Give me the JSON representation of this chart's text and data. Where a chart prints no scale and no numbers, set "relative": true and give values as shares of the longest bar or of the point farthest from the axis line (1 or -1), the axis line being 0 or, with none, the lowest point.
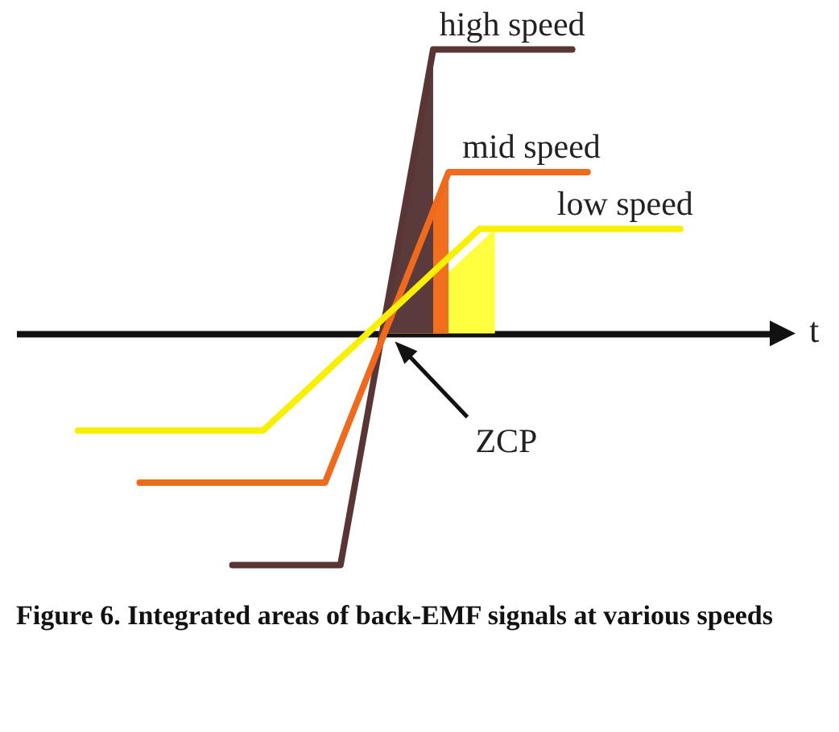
{
  "chart_data": {
    "type": "line",
    "relative": true,
    "xlabel": "t",
    "categories": [
      null,
      null,
      null,
      null,
      null,
      null,
      null,
      null,
      null,
      null,
      null,
      null,
      null,
      null,
      null,
      null,
      null,
      null,
      null,
      null,
      null,
      null,
      null,
      null,
      null,
      null,
      null,
      null,
      null,
      null,
      null,
      null,
      null,
      null,
      null,
      null,
      null,
      null,
      null,
      null,
      null,
      null,
      null,
      null,
      null,
      null,
      null,
      null,
      null,
      null
    ],
    "series": [
      {
        "name": "high speed",
        "color": "#5a3535",
        "values": [
          null,
          null,
          null,
          null,
          null,
          null,
          null,
          null,
          null,
          null,
          null,
          null,
          null,
          null,
          -0.816,
          -0.816,
          -0.816,
          -0.816,
          -0.816,
          -0.816,
          -0.816,
          -0.816,
          -0.513,
          -0.211,
          0.092,
          0.395,
          0.697,
          1,
          1,
          1,
          1,
          1,
          1,
          1,
          1,
          1,
          1,
          null,
          null,
          null,
          null,
          null,
          null,
          null,
          null,
          null,
          null,
          null,
          null,
          null
        ]
      },
      {
        "name": "mid speed",
        "color": "#f06a1e",
        "values": [
          null,
          null,
          null,
          null,
          null,
          null,
          null,
          null,
          -0.526,
          -0.526,
          -0.526,
          -0.526,
          -0.526,
          -0.526,
          -0.526,
          -0.526,
          -0.526,
          -0.526,
          -0.526,
          -0.526,
          -0.526,
          -0.389,
          -0.252,
          -0.116,
          0.021,
          0.158,
          0.295,
          0.431,
          0.568,
          0.568,
          0.568,
          0.568,
          0.568,
          0.568,
          0.568,
          0.568,
          0.568,
          0.568,
          null,
          null,
          null,
          null,
          null,
          null,
          null,
          null,
          null,
          null,
          null,
          null
        ]
      },
      {
        "name": "low speed",
        "color": "#f8f000",
        "values": [
          null,
          null,
          null,
          null,
          -0.342,
          -0.342,
          -0.342,
          -0.342,
          -0.342,
          -0.342,
          -0.342,
          -0.342,
          -0.342,
          -0.342,
          -0.342,
          -0.342,
          -0.342,
          -0.291,
          -0.241,
          -0.19,
          -0.139,
          -0.088,
          -0.038,
          0.013,
          0.064,
          0.114,
          0.165,
          0.216,
          0.267,
          0.317,
          0.368,
          0.368,
          0.368,
          0.368,
          0.368,
          0.368,
          0.368,
          0.368,
          0.368,
          0.368,
          0.368,
          0.368,
          0.368,
          0.368,
          null,
          null,
          null,
          null,
          null,
          null
        ]
      },
      {
        "type": "area",
        "color": "#ffff40",
        "values": [
          null,
          null,
          null,
          null,
          null,
          null,
          null,
          null,
          null,
          null,
          null,
          null,
          null,
          null,
          null,
          null,
          null,
          null,
          null,
          null,
          null,
          null,
          null,
          null,
          0.013,
          null,
          null,
          null,
          0.216,
          0.267,
          0.317,
          0.368,
          null,
          null,
          null,
          null,
          null,
          null,
          null,
          null,
          null,
          null,
          null,
          null,
          null,
          null,
          null,
          null,
          null,
          null
        ]
      },
      {
        "type": "area",
        "color": "#f07020",
        "values": [
          null,
          null,
          null,
          null,
          null,
          null,
          null,
          null,
          null,
          null,
          null,
          null,
          null,
          null,
          null,
          null,
          null,
          null,
          null,
          null,
          null,
          null,
          null,
          null,
          0.021,
          null,
          null,
          0.431,
          0.568,
          null,
          null,
          null,
          null,
          null,
          null,
          null,
          null,
          null,
          null,
          null,
          null,
          null,
          null,
          null,
          null,
          null,
          null,
          null,
          null,
          null
        ]
      },
      {
        "type": "area",
        "color": "#5a3a3a",
        "values": [
          null,
          null,
          null,
          null,
          null,
          null,
          null,
          null,
          null,
          null,
          null,
          null,
          null,
          null,
          null,
          null,
          null,
          null,
          null,
          null,
          null,
          null,
          null,
          null,
          0.092,
          0.395,
          0.697,
          1,
          null,
          null,
          null,
          null,
          null,
          null,
          null,
          null,
          null,
          null,
          null,
          null,
          null,
          null,
          null,
          null,
          null,
          null,
          null,
          null,
          null,
          null
        ]
      }
    ],
    "annotations": [
      "ZCP",
      "Figure 6. Integrated areas of back-EMF signals at various speeds"
    ]
  }
}
